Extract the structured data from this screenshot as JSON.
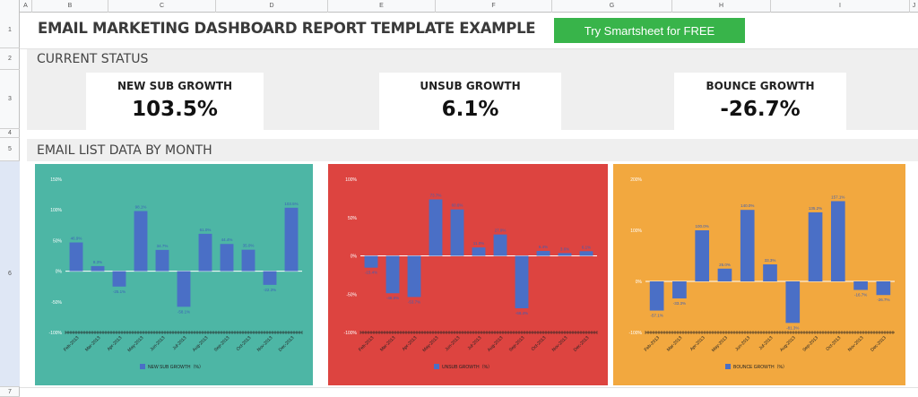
{
  "columns": [
    "A",
    "B",
    "C",
    "D",
    "E",
    "F",
    "G",
    "H",
    "I",
    "J"
  ],
  "rows": [
    "1",
    "2",
    "3",
    "4",
    "5",
    "6",
    "7"
  ],
  "title": "EMAIL MARKETING DASHBOARD REPORT TEMPLATE EXAMPLE",
  "cta_label": "Try Smartsheet for FREE",
  "status_heading": "CURRENT STATUS",
  "kpis": [
    {
      "label": "NEW SUB GROWTH",
      "value": "103.5%"
    },
    {
      "label": "UNSUB GROWTH",
      "value": "6.1%"
    },
    {
      "label": "BOUNCE GROWTH",
      "value": "-26.7%"
    }
  ],
  "list_heading": "EMAIL LIST DATA BY MONTH",
  "colors": {
    "chart1_bg": "#4db6a5",
    "chart2_bg": "#dd4440",
    "chart3_bg": "#f2a83f",
    "bar": "#4a6fc6",
    "cta": "#38b44a"
  },
  "chart_data": [
    {
      "type": "bar",
      "categories": [
        "Feb-2013",
        "Mar-2013",
        "Apr-2013",
        "May-2013",
        "Jun-2013",
        "Jul-2013",
        "Aug-2013",
        "Sep-2013",
        "Oct-2013",
        "Nov-2013",
        "Dec-2013"
      ],
      "series": [
        {
          "name": "NEW SUB GROWTH（%）",
          "values": [
            46.9,
            8.3,
            -25.1,
            98.1,
            34.7,
            -58.1,
            61.0,
            44.4,
            35.0,
            -22.3,
            103.5
          ]
        }
      ],
      "value_labels": [
        "46.9%",
        "8.3%",
        "-25.1%",
        "98.1%",
        "34.7%",
        "-58.1%",
        "61.0%",
        "44.4%",
        "35.0%",
        "-22.3%",
        "103.5%"
      ],
      "yticks": [
        "150%",
        "100%",
        "50%",
        "0%",
        "-50%",
        "-100%"
      ],
      "ylim": [
        -100,
        150
      ],
      "legend": "bottom"
    },
    {
      "type": "bar",
      "categories": [
        "Feb-2013",
        "Mar-2013",
        "Apr-2013",
        "May-2013",
        "Jun-2013",
        "Jul-2013",
        "Aug-2013",
        "Sep-2013",
        "Oct-2013",
        "Nov-2013",
        "Dec-2013"
      ],
      "series": [
        {
          "name": "UNSUB GROWTH（%）",
          "values": [
            -15.4,
            -48.8,
            -53.7,
            73.7,
            60.6,
            11.0,
            27.9,
            -68.4,
            6.4,
            3.6,
            6.1
          ]
        }
      ],
      "value_labels": [
        "-15.4%",
        "-48.8%",
        "-53.7%",
        "73.7%",
        "60.6%",
        "11.0%",
        "27.9%",
        "-68.4%",
        "6.4%",
        "3.6%",
        "6.1%"
      ],
      "yticks": [
        "100%",
        "50%",
        "0%",
        "-50%",
        "-100%"
      ],
      "ylim": [
        -100,
        100
      ],
      "legend": "bottom"
    },
    {
      "type": "bar",
      "categories": [
        "Feb-2013",
        "Mar-2013",
        "Apr-2013",
        "May-2013",
        "Jun-2013",
        "Jul-2013",
        "Aug-2013",
        "Sep-2013",
        "Oct-2013",
        "Nov-2013",
        "Dec-2013"
      ],
      "series": [
        {
          "name": "BOUNCE GROWTH（%）",
          "values": [
            -57.1,
            -33.3,
            100.0,
            25.0,
            140.0,
            33.3,
            -81.3,
            135.2,
            157.1,
            -16.7,
            -26.7
          ]
        }
      ],
      "value_labels": [
        "-57.1%",
        "-33.3%",
        "100.0%",
        "25.0%",
        "140.0%",
        "33.3%",
        "-81.3%",
        "135.2%",
        "157.1%",
        "-16.7%",
        "-26.7%"
      ],
      "yticks": [
        "200%",
        "100%",
        "0%",
        "-100%"
      ],
      "ylim": [
        -100,
        200
      ],
      "legend": "bottom"
    }
  ]
}
